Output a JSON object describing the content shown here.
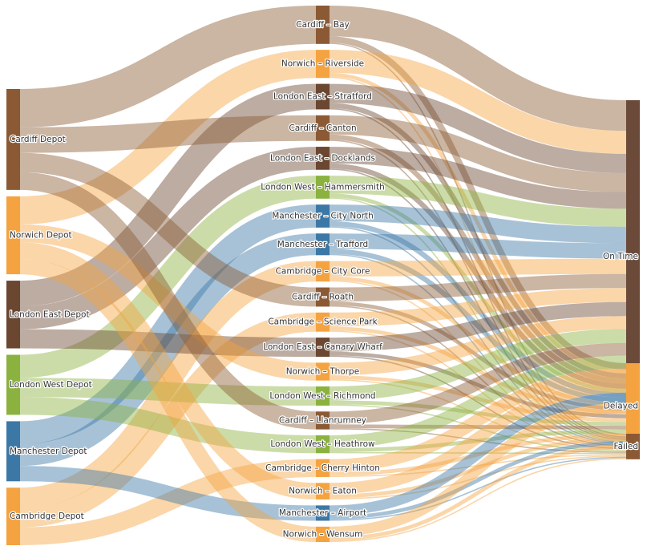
{
  "chart_data": {
    "type": "sankey",
    "title": "",
    "colors": {
      "Cardiff": "#8b5a34",
      "Norwich": "#f4a340",
      "London East": "#6b4630",
      "London West": "#8bb23f",
      "Manchester": "#3c78a6",
      "Cambridge": "#f4a340",
      "outcome_on_time": "#6b4a3a",
      "outcome_delayed": "#f4a340",
      "outcome_failed": "#8b5a34"
    },
    "sources": [
      {
        "name": "Cardiff Depot",
        "group": "Cardiff"
      },
      {
        "name": "Norwich Depot",
        "group": "Norwich"
      },
      {
        "name": "London East Depot",
        "group": "London East"
      },
      {
        "name": "London West Depot",
        "group": "London West"
      },
      {
        "name": "Manchester Depot",
        "group": "Manchester"
      },
      {
        "name": "Cambridge Depot",
        "group": "Cambridge"
      }
    ],
    "hubs": [
      {
        "name": "Cardiff – Bay",
        "source": "Cardiff Depot",
        "value": 30
      },
      {
        "name": "Norwich – Riverside",
        "source": "Norwich Depot",
        "value": 22
      },
      {
        "name": "London East – Stratford",
        "source": "London East Depot",
        "value": 20
      },
      {
        "name": "Cardiff – Canton",
        "source": "Cardiff Depot",
        "value": 20
      },
      {
        "name": "London East – Docklands",
        "source": "London East Depot",
        "value": 18
      },
      {
        "name": "London West – Hammersmith",
        "source": "London West Depot",
        "value": 18
      },
      {
        "name": "Manchester – City North",
        "source": "Manchester Depot",
        "value": 18
      },
      {
        "name": "Manchester – Trafford",
        "source": "Manchester Depot",
        "value": 17
      },
      {
        "name": "Cambridge – City Core",
        "source": "Cambridge Depot",
        "value": 16
      },
      {
        "name": "Cardiff – Roath",
        "source": "Cardiff Depot",
        "value": 15
      },
      {
        "name": "Cambridge – Science Park",
        "source": "Cambridge Depot",
        "value": 15
      },
      {
        "name": "London East – Canary Wharf",
        "source": "London East Depot",
        "value": 15
      },
      {
        "name": "Norwich – Thorpe",
        "source": "Norwich Depot",
        "value": 14
      },
      {
        "name": "London West – Richmond",
        "source": "London West Depot",
        "value": 15
      },
      {
        "name": "Cardiff – Llanrumney",
        "source": "Cardiff Depot",
        "value": 14
      },
      {
        "name": "London West – Heathrow",
        "source": "London West Depot",
        "value": 14
      },
      {
        "name": "Cambridge – Cherry Hinton",
        "source": "Cambridge Depot",
        "value": 14
      },
      {
        "name": "Norwich – Eaton",
        "source": "Norwich Depot",
        "value": 13
      },
      {
        "name": "Manchester – Airport",
        "source": "Manchester Depot",
        "value": 12
      },
      {
        "name": "Norwich – Wensum",
        "source": "Norwich Depot",
        "value": 12
      }
    ],
    "outcomes": [
      {
        "name": "On Time",
        "key": "outcome_on_time"
      },
      {
        "name": "Delayed",
        "key": "outcome_delayed"
      },
      {
        "name": "Failed",
        "key": "outcome_failed"
      }
    ],
    "outcome_split": [
      [
        24,
        5,
        1
      ],
      [
        18,
        3,
        1
      ],
      [
        15,
        4,
        1
      ],
      [
        15,
        4,
        1
      ],
      [
        13,
        4,
        1
      ],
      [
        14,
        3,
        1
      ],
      [
        13,
        4,
        1
      ],
      [
        12,
        4,
        1
      ],
      [
        12,
        3,
        1
      ],
      [
        11,
        3,
        1
      ],
      [
        11,
        3,
        1
      ],
      [
        11,
        3,
        1
      ],
      [
        10,
        3,
        1
      ],
      [
        11,
        3,
        1
      ],
      [
        10,
        3,
        1
      ],
      [
        10,
        3,
        1
      ],
      [
        10,
        3,
        1
      ],
      [
        9,
        3,
        1
      ],
      [
        8,
        3,
        1
      ],
      [
        8,
        3,
        1
      ]
    ]
  }
}
